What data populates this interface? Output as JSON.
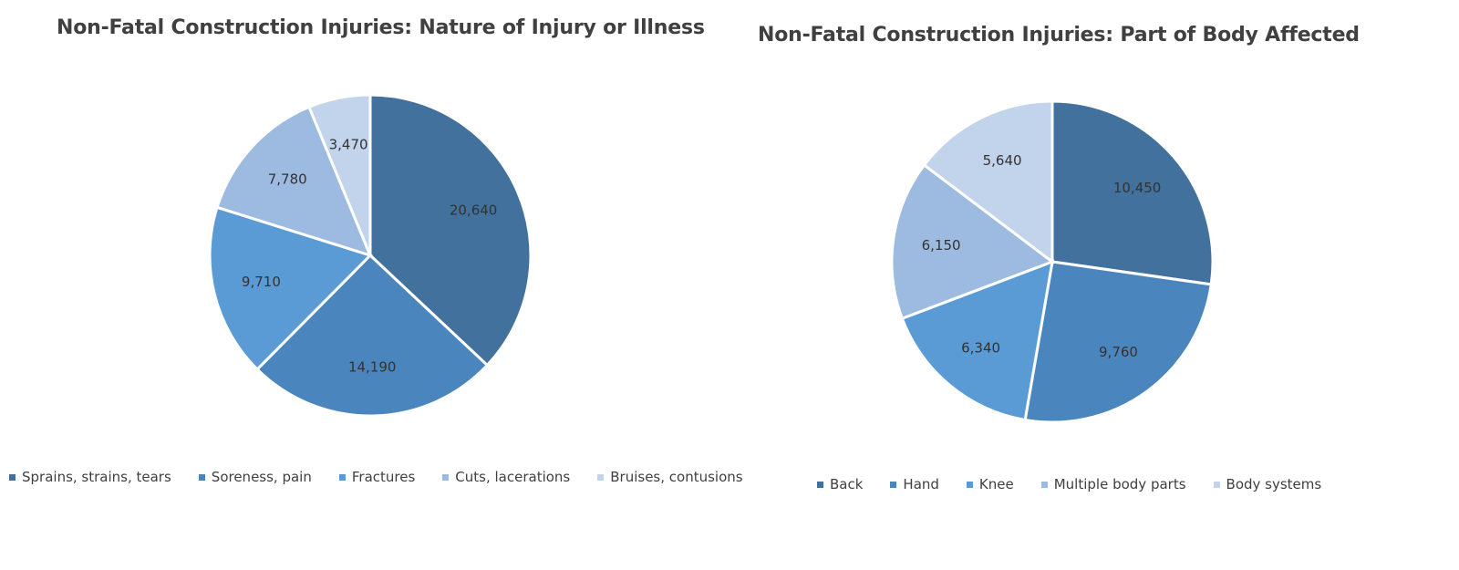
{
  "chart_data": [
    {
      "type": "pie",
      "title": "Non-Fatal Construction Injuries: Nature of Injury or Illness",
      "categories": [
        "Sprains, strains, tears",
        "Soreness, pain",
        "Fractures",
        "Cuts, lacerations",
        "Bruises, contusions"
      ],
      "values": [
        20640,
        14190,
        9710,
        7780,
        3470
      ],
      "value_labels": [
        "20,640",
        "14,190",
        "9,710",
        "7,780",
        "3,470"
      ],
      "colors": [
        "#41719c",
        "#4a86bd",
        "#5b9bd5",
        "#9dbae0",
        "#c2d3ec"
      ],
      "legend_position": "bottom"
    },
    {
      "type": "pie",
      "title": "Non-Fatal Construction Injuries: Part of Body Affected",
      "categories": [
        "Back",
        "Hand",
        "Knee",
        "Multiple body parts",
        "Body systems"
      ],
      "values": [
        10450,
        9760,
        6340,
        6150,
        5640
      ],
      "value_labels": [
        "10,450",
        "9,760",
        "6,340",
        "6,150",
        "5,640"
      ],
      "colors": [
        "#41719c",
        "#4a86bd",
        "#5b9bd5",
        "#9dbae0",
        "#c2d3ec"
      ],
      "legend_position": "bottom"
    }
  ]
}
